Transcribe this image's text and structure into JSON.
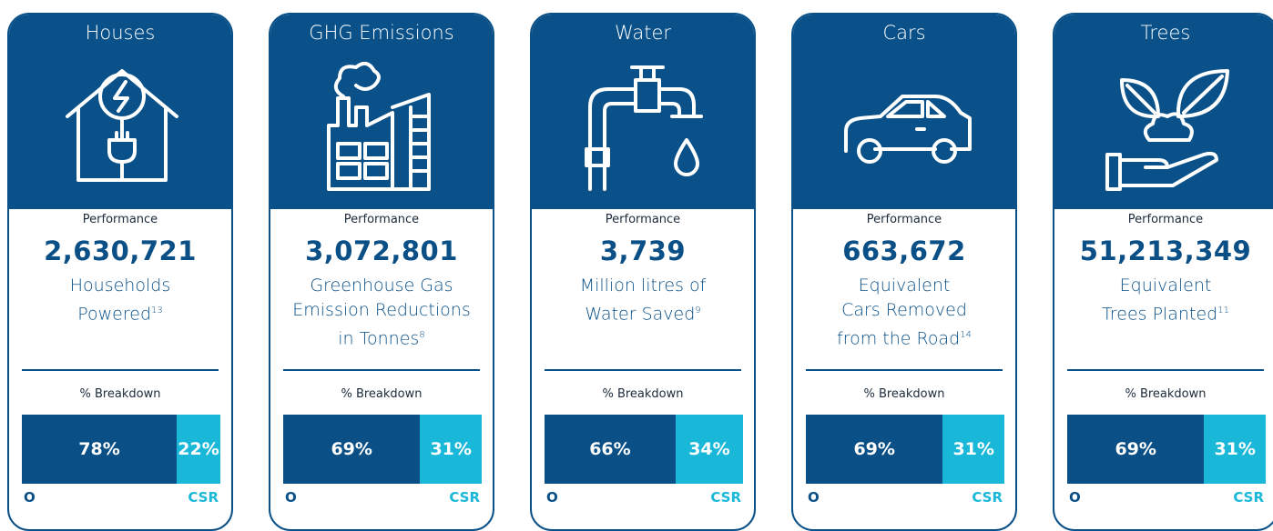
{
  "cards": [
    {
      "title": "Houses",
      "performance_label": "Performance",
      "value": "2,630,721",
      "description": [
        "Households",
        "Powered"
      ],
      "note": "13",
      "breakdown_label": "% Breakdown",
      "breakdown": {
        "values": [
          78,
          22
        ],
        "value_labels": [
          "78%",
          "22%"
        ],
        "colors": [
          "#0a4f86",
          "#1ab8d8"
        ],
        "labels": [
          "O",
          "CSR"
        ]
      }
    },
    {
      "title": "GHG Emissions",
      "performance_label": "Performance",
      "value": "3,072,801",
      "description": [
        "Greenhouse Gas",
        "Emission Reductions",
        "in Tonnes"
      ],
      "note": "8",
      "breakdown_label": "% Breakdown",
      "breakdown": {
        "values": [
          69,
          31
        ],
        "value_labels": [
          "69%",
          "31%"
        ],
        "colors": [
          "#0a4f86",
          "#1ab8d8"
        ],
        "labels": [
          "O",
          "CSR"
        ]
      }
    },
    {
      "title": "Water",
      "performance_label": "Performance",
      "value": "3,739",
      "description": [
        "Million litres of",
        "Water Saved"
      ],
      "note": "9",
      "breakdown_label": "% Breakdown",
      "breakdown": {
        "values": [
          66,
          34
        ],
        "value_labels": [
          "66%",
          "34%"
        ],
        "colors": [
          "#0a4f86",
          "#1ab8d8"
        ],
        "labels": [
          "O",
          "CSR"
        ]
      }
    },
    {
      "title": "Cars",
      "performance_label": "Performance",
      "value": "663,672",
      "description": [
        "Equivalent",
        "Cars Removed",
        "from the Road"
      ],
      "note": "14",
      "breakdown_label": "% Breakdown",
      "breakdown": {
        "values": [
          69,
          31
        ],
        "value_labels": [
          "69%",
          "31%"
        ],
        "colors": [
          "#0a4f86",
          "#1ab8d8"
        ],
        "labels": [
          "O",
          "CSR"
        ]
      }
    },
    {
      "title": "Trees",
      "performance_label": "Performance",
      "value": "51,213,349",
      "description": [
        "Equivalent",
        "Trees Planted"
      ],
      "note": "11",
      "breakdown_label": "% Breakdown",
      "breakdown": {
        "values": [
          69,
          31
        ],
        "value_labels": [
          "69%",
          "31%"
        ],
        "colors": [
          "#0a4f86",
          "#1ab8d8"
        ],
        "labels": [
          "O",
          "CSR"
        ]
      }
    }
  ]
}
